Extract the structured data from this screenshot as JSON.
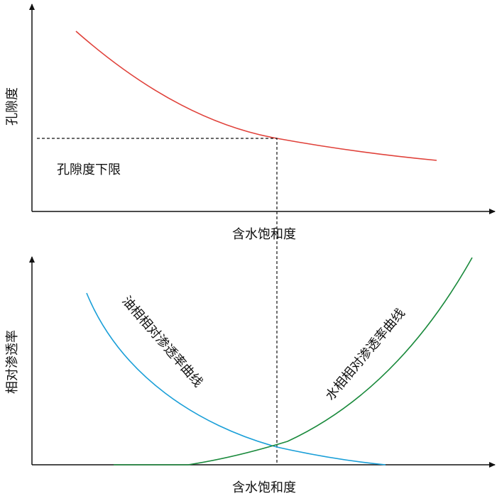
{
  "top_panel": {
    "y_label": "孔隙度",
    "x_label": "含水饱和度",
    "annotation": "孔隙度下限"
  },
  "bottom_panel": {
    "y_label": "相对渗透率",
    "x_label": "含水饱和度",
    "oil_curve_label": "油相相对渗透率曲线",
    "water_curve_label": "水相相对渗透率曲线"
  }
}
